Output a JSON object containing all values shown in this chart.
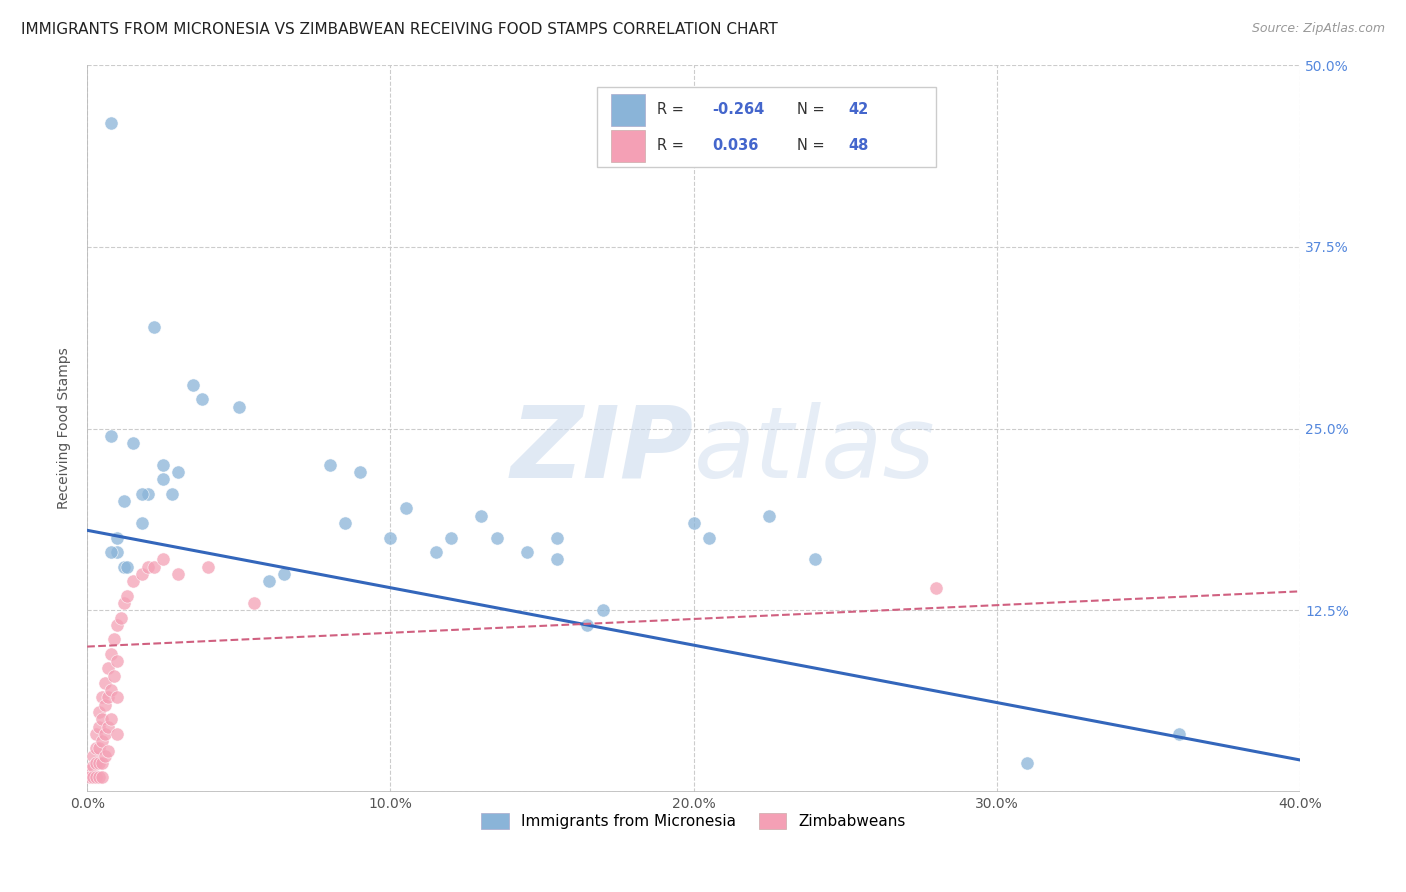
{
  "title": "IMMIGRANTS FROM MICRONESIA VS ZIMBABWEAN RECEIVING FOOD STAMPS CORRELATION CHART",
  "source": "Source: ZipAtlas.com",
  "ylabel": "Receiving Food Stamps",
  "xlim": [
    0.0,
    0.4
  ],
  "ylim": [
    0.0,
    0.5
  ],
  "yticks": [
    0.0,
    0.125,
    0.25,
    0.375,
    0.5
  ],
  "ytick_labels": [
    "",
    "12.5%",
    "25.0%",
    "37.5%",
    "50.0%"
  ],
  "xticks": [
    0.0,
    0.1,
    0.2,
    0.3,
    0.4
  ],
  "xtick_labels": [
    "0.0%",
    "10.0%",
    "20.0%",
    "30.0%",
    "40.0%"
  ],
  "legend_label1": "Immigrants from Micronesia",
  "legend_label2": "Zimbabweans",
  "color_blue": "#8ab4d8",
  "color_pink": "#f4a0b5",
  "color_blue_line": "#3366bb",
  "color_pink_line": "#d06080",
  "blue_scatter_x": [
    0.008,
    0.022,
    0.035,
    0.038,
    0.008,
    0.015,
    0.012,
    0.02,
    0.018,
    0.01,
    0.01,
    0.012,
    0.025,
    0.025,
    0.03,
    0.028,
    0.018,
    0.05,
    0.06,
    0.065,
    0.08,
    0.09,
    0.085,
    0.1,
    0.105,
    0.12,
    0.115,
    0.13,
    0.135,
    0.145,
    0.155,
    0.155,
    0.165,
    0.17,
    0.2,
    0.205,
    0.225,
    0.24,
    0.31,
    0.36,
    0.013,
    0.008
  ],
  "blue_scatter_y": [
    0.46,
    0.32,
    0.28,
    0.27,
    0.245,
    0.24,
    0.2,
    0.205,
    0.185,
    0.175,
    0.165,
    0.155,
    0.225,
    0.215,
    0.22,
    0.205,
    0.205,
    0.265,
    0.145,
    0.15,
    0.225,
    0.22,
    0.185,
    0.175,
    0.195,
    0.175,
    0.165,
    0.19,
    0.175,
    0.165,
    0.175,
    0.16,
    0.115,
    0.125,
    0.185,
    0.175,
    0.19,
    0.16,
    0.02,
    0.04,
    0.155,
    0.165
  ],
  "pink_scatter_x": [
    0.001,
    0.001,
    0.002,
    0.002,
    0.002,
    0.003,
    0.003,
    0.003,
    0.003,
    0.004,
    0.004,
    0.004,
    0.004,
    0.004,
    0.005,
    0.005,
    0.005,
    0.005,
    0.005,
    0.006,
    0.006,
    0.006,
    0.006,
    0.007,
    0.007,
    0.007,
    0.007,
    0.008,
    0.008,
    0.008,
    0.009,
    0.009,
    0.01,
    0.01,
    0.01,
    0.01,
    0.011,
    0.012,
    0.013,
    0.015,
    0.018,
    0.02,
    0.022,
    0.025,
    0.03,
    0.04,
    0.055,
    0.28
  ],
  "pink_scatter_y": [
    0.015,
    0.01,
    0.025,
    0.018,
    0.01,
    0.04,
    0.03,
    0.02,
    0.01,
    0.055,
    0.045,
    0.03,
    0.02,
    0.01,
    0.065,
    0.05,
    0.035,
    0.02,
    0.01,
    0.075,
    0.06,
    0.04,
    0.025,
    0.085,
    0.065,
    0.045,
    0.028,
    0.095,
    0.07,
    0.05,
    0.105,
    0.08,
    0.115,
    0.09,
    0.065,
    0.04,
    0.12,
    0.13,
    0.135,
    0.145,
    0.15,
    0.155,
    0.155,
    0.16,
    0.15,
    0.155,
    0.13,
    0.14
  ],
  "blue_line_x": [
    0.0,
    0.4
  ],
  "blue_line_y": [
    0.18,
    0.022
  ],
  "pink_line_x": [
    0.0,
    0.4
  ],
  "pink_line_y": [
    0.1,
    0.138
  ],
  "background_color": "#ffffff",
  "grid_color": "#cccccc",
  "title_fontsize": 11,
  "axis_label_fontsize": 10,
  "tick_fontsize": 10
}
